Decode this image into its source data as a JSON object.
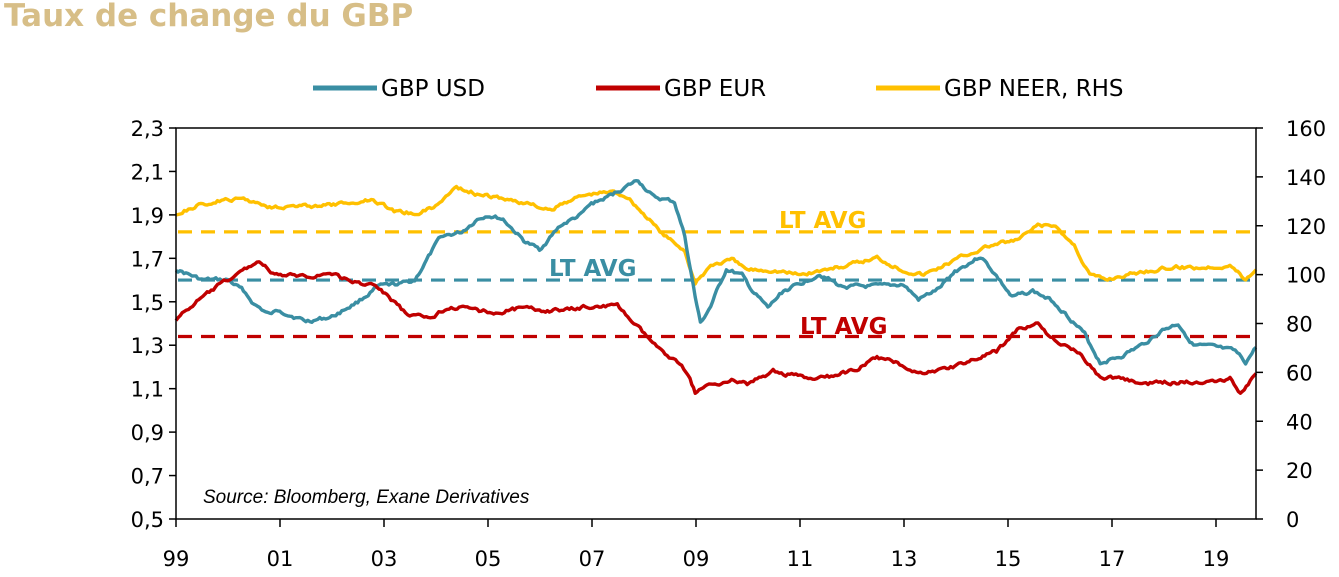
{
  "title": "Taux de change du GBP",
  "source": "Source: Bloomberg, Exane Derivatives",
  "colors": {
    "usd": "#3a8ea3",
    "eur": "#c00000",
    "neer": "#ffc000",
    "title": "#d7be87"
  },
  "chart_data": {
    "type": "line",
    "legend_position": "top",
    "grid": false,
    "x_ticks": [
      "99",
      "01",
      "03",
      "05",
      "07",
      "09",
      "11",
      "13",
      "15",
      "17",
      "19"
    ],
    "x_range": [
      1999,
      2019.8
    ],
    "y_left": {
      "range": [
        0.5,
        2.3
      ],
      "ticks": [
        "2,3",
        "2,1",
        "1,9",
        "1,7",
        "1,5",
        "1,3",
        "1,1",
        "0,9",
        "0,7",
        "0,5"
      ]
    },
    "y_right": {
      "range": [
        0,
        160
      ],
      "ticks": [
        "160",
        "140",
        "120",
        "100",
        "80",
        "60",
        "40",
        "20",
        "0"
      ]
    },
    "series": [
      {
        "name": "GBP USD",
        "axis": "left",
        "color": "#3a8ea3",
        "points": [
          [
            1999.0,
            1.65
          ],
          [
            1999.5,
            1.6
          ],
          [
            2000.0,
            1.6
          ],
          [
            2000.3,
            1.55
          ],
          [
            2000.5,
            1.49
          ],
          [
            2000.8,
            1.44
          ],
          [
            2001.0,
            1.46
          ],
          [
            2001.5,
            1.41
          ],
          [
            2002.0,
            1.43
          ],
          [
            2002.5,
            1.5
          ],
          [
            2002.9,
            1.57
          ],
          [
            2003.3,
            1.58
          ],
          [
            2003.6,
            1.6
          ],
          [
            2003.9,
            1.72
          ],
          [
            2004.1,
            1.8
          ],
          [
            2004.5,
            1.82
          ],
          [
            2004.8,
            1.88
          ],
          [
            2005.0,
            1.9
          ],
          [
            2005.3,
            1.88
          ],
          [
            2005.7,
            1.78
          ],
          [
            2006.0,
            1.74
          ],
          [
            2006.4,
            1.85
          ],
          [
            2006.8,
            1.9
          ],
          [
            2007.0,
            1.95
          ],
          [
            2007.3,
            1.98
          ],
          [
            2007.6,
            2.02
          ],
          [
            2007.9,
            2.06
          ],
          [
            2008.2,
            1.98
          ],
          [
            2008.6,
            1.96
          ],
          [
            2008.8,
            1.8
          ],
          [
            2009.0,
            1.52
          ],
          [
            2009.1,
            1.4
          ],
          [
            2009.3,
            1.48
          ],
          [
            2009.6,
            1.65
          ],
          [
            2009.9,
            1.62
          ],
          [
            2010.1,
            1.55
          ],
          [
            2010.4,
            1.47
          ],
          [
            2010.7,
            1.55
          ],
          [
            2011.0,
            1.58
          ],
          [
            2011.4,
            1.63
          ],
          [
            2011.8,
            1.57
          ],
          [
            2012.2,
            1.57
          ],
          [
            2012.6,
            1.57
          ],
          [
            2013.0,
            1.58
          ],
          [
            2013.3,
            1.51
          ],
          [
            2013.7,
            1.56
          ],
          [
            2014.0,
            1.64
          ],
          [
            2014.5,
            1.71
          ],
          [
            2014.8,
            1.62
          ],
          [
            2015.1,
            1.52
          ],
          [
            2015.5,
            1.55
          ],
          [
            2015.9,
            1.5
          ],
          [
            2016.2,
            1.43
          ],
          [
            2016.5,
            1.35
          ],
          [
            2016.8,
            1.22
          ],
          [
            2017.2,
            1.25
          ],
          [
            2017.6,
            1.3
          ],
          [
            2018.0,
            1.37
          ],
          [
            2018.3,
            1.4
          ],
          [
            2018.6,
            1.3
          ],
          [
            2019.0,
            1.29
          ],
          [
            2019.4,
            1.27
          ],
          [
            2019.6,
            1.22
          ],
          [
            2019.8,
            1.29
          ]
        ]
      },
      {
        "name": "GBP EUR",
        "axis": "left",
        "color": "#c00000",
        "points": [
          [
            1999.0,
            1.42
          ],
          [
            1999.4,
            1.5
          ],
          [
            1999.8,
            1.57
          ],
          [
            2000.2,
            1.63
          ],
          [
            2000.6,
            1.69
          ],
          [
            2000.9,
            1.62
          ],
          [
            2001.2,
            1.62
          ],
          [
            2001.6,
            1.62
          ],
          [
            2002.0,
            1.63
          ],
          [
            2002.4,
            1.59
          ],
          [
            2002.8,
            1.58
          ],
          [
            2003.1,
            1.52
          ],
          [
            2003.5,
            1.43
          ],
          [
            2003.9,
            1.43
          ],
          [
            2004.3,
            1.48
          ],
          [
            2004.8,
            1.46
          ],
          [
            2005.2,
            1.45
          ],
          [
            2005.6,
            1.47
          ],
          [
            2006.0,
            1.46
          ],
          [
            2006.5,
            1.46
          ],
          [
            2007.0,
            1.48
          ],
          [
            2007.5,
            1.48
          ],
          [
            2007.9,
            1.38
          ],
          [
            2008.3,
            1.28
          ],
          [
            2008.7,
            1.22
          ],
          [
            2008.9,
            1.15
          ],
          [
            2009.0,
            1.08
          ],
          [
            2009.3,
            1.12
          ],
          [
            2009.7,
            1.14
          ],
          [
            2010.0,
            1.12
          ],
          [
            2010.5,
            1.18
          ],
          [
            2010.9,
            1.16
          ],
          [
            2011.3,
            1.14
          ],
          [
            2011.7,
            1.16
          ],
          [
            2012.0,
            1.18
          ],
          [
            2012.5,
            1.24
          ],
          [
            2012.9,
            1.22
          ],
          [
            2013.3,
            1.17
          ],
          [
            2013.8,
            1.19
          ],
          [
            2014.2,
            1.22
          ],
          [
            2014.8,
            1.27
          ],
          [
            2015.2,
            1.37
          ],
          [
            2015.6,
            1.4
          ],
          [
            2016.0,
            1.3
          ],
          [
            2016.4,
            1.27
          ],
          [
            2016.8,
            1.15
          ],
          [
            2017.2,
            1.15
          ],
          [
            2017.6,
            1.12
          ],
          [
            2018.0,
            1.13
          ],
          [
            2018.5,
            1.13
          ],
          [
            2019.0,
            1.14
          ],
          [
            2019.3,
            1.15
          ],
          [
            2019.5,
            1.08
          ],
          [
            2019.8,
            1.17
          ]
        ]
      },
      {
        "name": "GBP NEER, RHS",
        "axis": "right",
        "color": "#ffc000",
        "points": [
          [
            1999.0,
            125
          ],
          [
            1999.4,
            128
          ],
          [
            1999.8,
            130
          ],
          [
            2000.3,
            131
          ],
          [
            2000.8,
            128
          ],
          [
            2001.3,
            128
          ],
          [
            2001.8,
            128
          ],
          [
            2002.3,
            129
          ],
          [
            2002.8,
            131
          ],
          [
            2003.2,
            126
          ],
          [
            2003.6,
            125
          ],
          [
            2004.0,
            128
          ],
          [
            2004.4,
            136
          ],
          [
            2004.8,
            133
          ],
          [
            2005.3,
            131
          ],
          [
            2005.8,
            129
          ],
          [
            2006.2,
            126
          ],
          [
            2006.6,
            131
          ],
          [
            2007.0,
            133
          ],
          [
            2007.4,
            134
          ],
          [
            2007.7,
            132
          ],
          [
            2008.0,
            125
          ],
          [
            2008.4,
            116
          ],
          [
            2008.8,
            110
          ],
          [
            2009.0,
            96
          ],
          [
            2009.3,
            104
          ],
          [
            2009.7,
            106
          ],
          [
            2010.0,
            102
          ],
          [
            2010.5,
            102
          ],
          [
            2011.0,
            100
          ],
          [
            2011.5,
            102
          ],
          [
            2012.0,
            104
          ],
          [
            2012.5,
            107
          ],
          [
            2013.0,
            102
          ],
          [
            2013.4,
            100
          ],
          [
            2013.8,
            104
          ],
          [
            2014.2,
            108
          ],
          [
            2014.7,
            112
          ],
          [
            2015.2,
            114
          ],
          [
            2015.6,
            120
          ],
          [
            2015.9,
            120
          ],
          [
            2016.3,
            112
          ],
          [
            2016.6,
            100
          ],
          [
            2016.9,
            98
          ],
          [
            2017.3,
            100
          ],
          [
            2017.8,
            102
          ],
          [
            2018.3,
            103
          ],
          [
            2018.8,
            103
          ],
          [
            2019.3,
            104
          ],
          [
            2019.6,
            98
          ],
          [
            2019.8,
            102
          ]
        ]
      }
    ],
    "reference_lines": [
      {
        "label": "LT AVG",
        "axis": "right",
        "value": 117.5,
        "color": "#ffc000"
      },
      {
        "label": "LT AVG",
        "axis": "left",
        "value": 1.6,
        "color": "#3a8ea3"
      },
      {
        "label": "LT AVG",
        "axis": "left",
        "value": 1.34,
        "color": "#c00000"
      }
    ]
  }
}
